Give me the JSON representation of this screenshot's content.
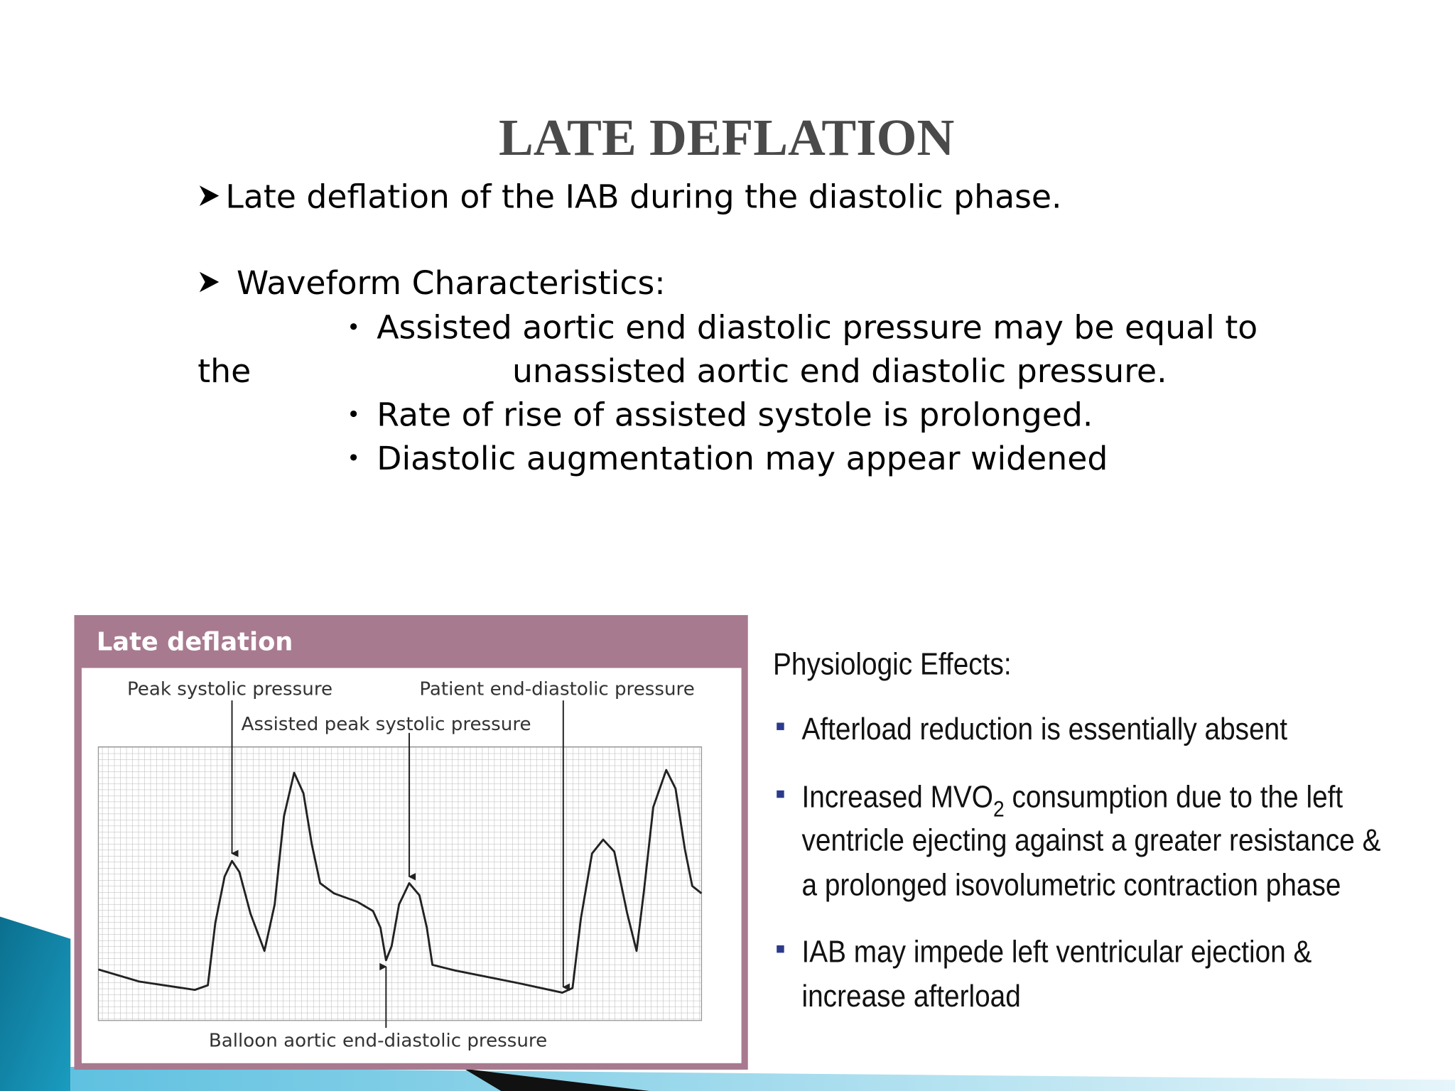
{
  "title": "LATE DEFLATION",
  "bullets": [
    "Late deflation of the IAB during the diastolic phase.",
    "Waveform Characteristics:"
  ],
  "sub_items": [
    [
      "Assisted aortic end diastolic pressure may be equal to",
      "the",
      "unassisted aortic end diastolic pressure."
    ],
    [
      "Rate of rise of assisted systole is prolonged."
    ],
    [
      "Diastolic augmentation may appear widened"
    ]
  ],
  "figure": {
    "title": "Late deflation",
    "labels": {
      "peak_systolic": "Peak systolic pressure",
      "patient_end_diastolic": "Patient end-diastolic pressure",
      "assisted_peak_systolic": "Assisted peak systolic pressure",
      "balloon_end_diastolic": "Balloon aortic end-diastolic pressure"
    }
  },
  "effects": {
    "heading": "Physiologic Effects:",
    "items": [
      [
        "Afterload reduction is essentially absent"
      ],
      [
        "Increased MVO",
        "2",
        " consumption due to the left",
        "ventricle ejecting against a greater resistance &",
        "a prolonged isovolumetric contraction phase"
      ],
      [
        "IAB may impede left ventricular ejection &",
        "increase afterload"
      ]
    ]
  }
}
